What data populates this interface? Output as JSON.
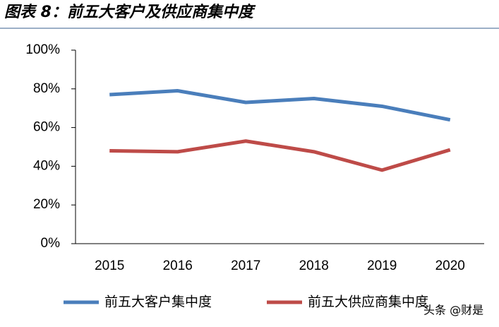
{
  "chart_data": {
    "type": "line",
    "title": "图表 8：前五大客户及供应商集中度",
    "categories": [
      "2015",
      "2016",
      "2017",
      "2018",
      "2019",
      "2020"
    ],
    "series": [
      {
        "name": "前五大客户集中度",
        "color": "#4a7ebb",
        "values": [
          77,
          79,
          73,
          75,
          71,
          64
        ]
      },
      {
        "name": "前五大供应商集中度",
        "color": "#be4b48",
        "values": [
          48,
          47.5,
          53,
          47.5,
          38,
          48.5
        ]
      }
    ],
    "ylim": [
      0,
      100
    ],
    "yticks": [
      {
        "value": 0,
        "label": "0%"
      },
      {
        "value": 20,
        "label": "20%"
      },
      {
        "value": 40,
        "label": "40%"
      },
      {
        "value": 60,
        "label": "60%"
      },
      {
        "value": 80,
        "label": "80%"
      },
      {
        "value": 100,
        "label": "100%"
      }
    ],
    "watermark": "头条 @财是"
  }
}
